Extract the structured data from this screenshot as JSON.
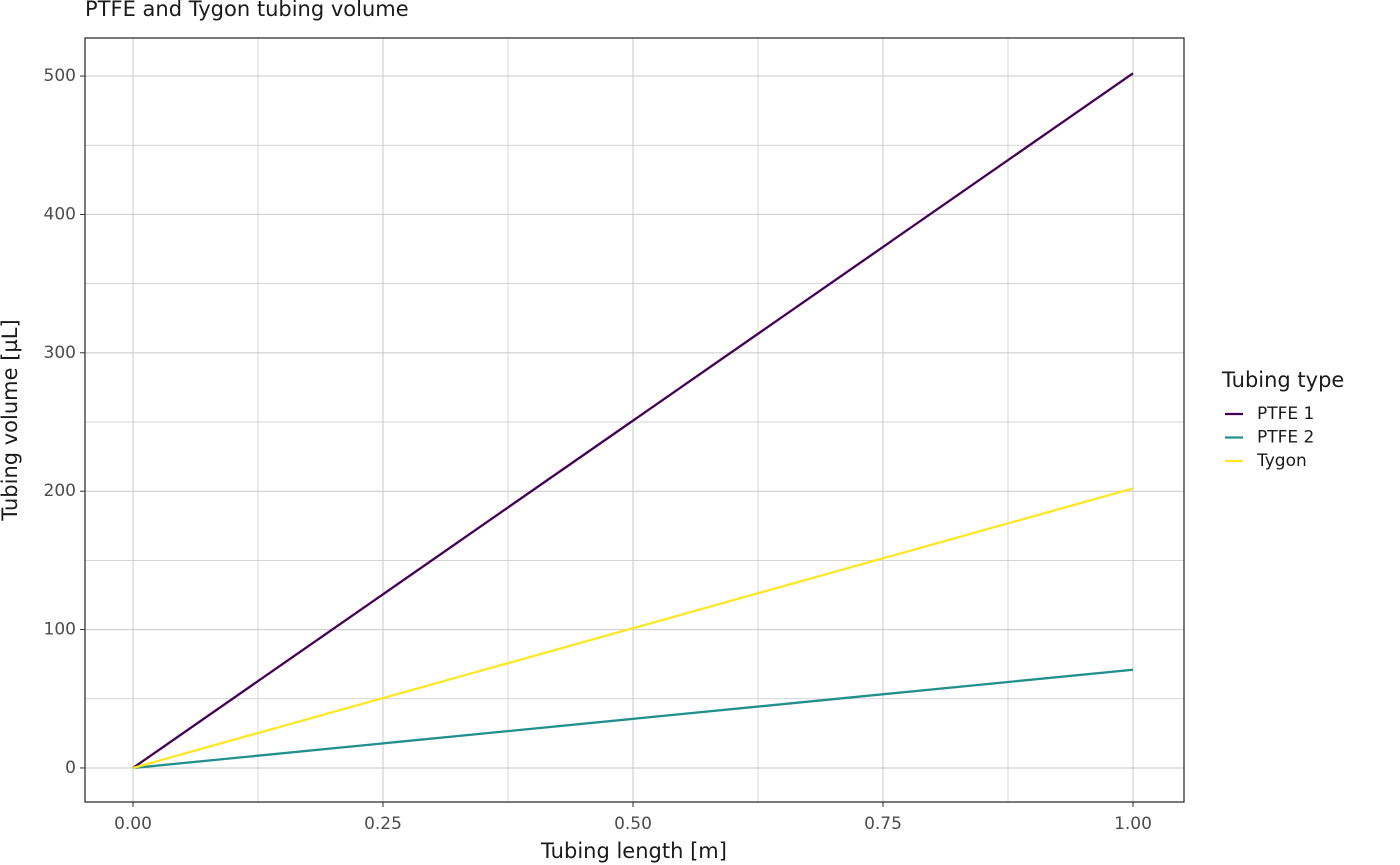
{
  "chart_data": {
    "type": "line",
    "title": "PTFE and Tygon tubing volume",
    "x_label": "Tubing length [m]",
    "y_label": "Tubing volume [µL]",
    "legend_title": "Tubing type",
    "legend_position": "right",
    "grid": true,
    "x": [
      0,
      1
    ],
    "series": [
      {
        "name": "PTFE 1",
        "color": "#440154",
        "values": [
          0,
          502
        ]
      },
      {
        "name": "PTFE 2",
        "color": "#21908c",
        "values": [
          0,
          71
        ]
      },
      {
        "name": "Tygon",
        "color": "#fde725",
        "values": [
          0,
          202
        ]
      }
    ],
    "xlim": [
      -0.048,
      1.051
    ],
    "xticks": [
      {
        "value": 0,
        "label": "0.00"
      },
      {
        "value": 0.25,
        "label": "0.25"
      },
      {
        "value": 0.5,
        "label": "0.50"
      },
      {
        "value": 0.75,
        "label": "0.75"
      },
      {
        "value": 1,
        "label": "1.00"
      }
    ],
    "ylim": [
      -24.6,
      527.5
    ],
    "yticks": [
      0,
      100,
      200,
      300,
      400,
      500
    ]
  }
}
